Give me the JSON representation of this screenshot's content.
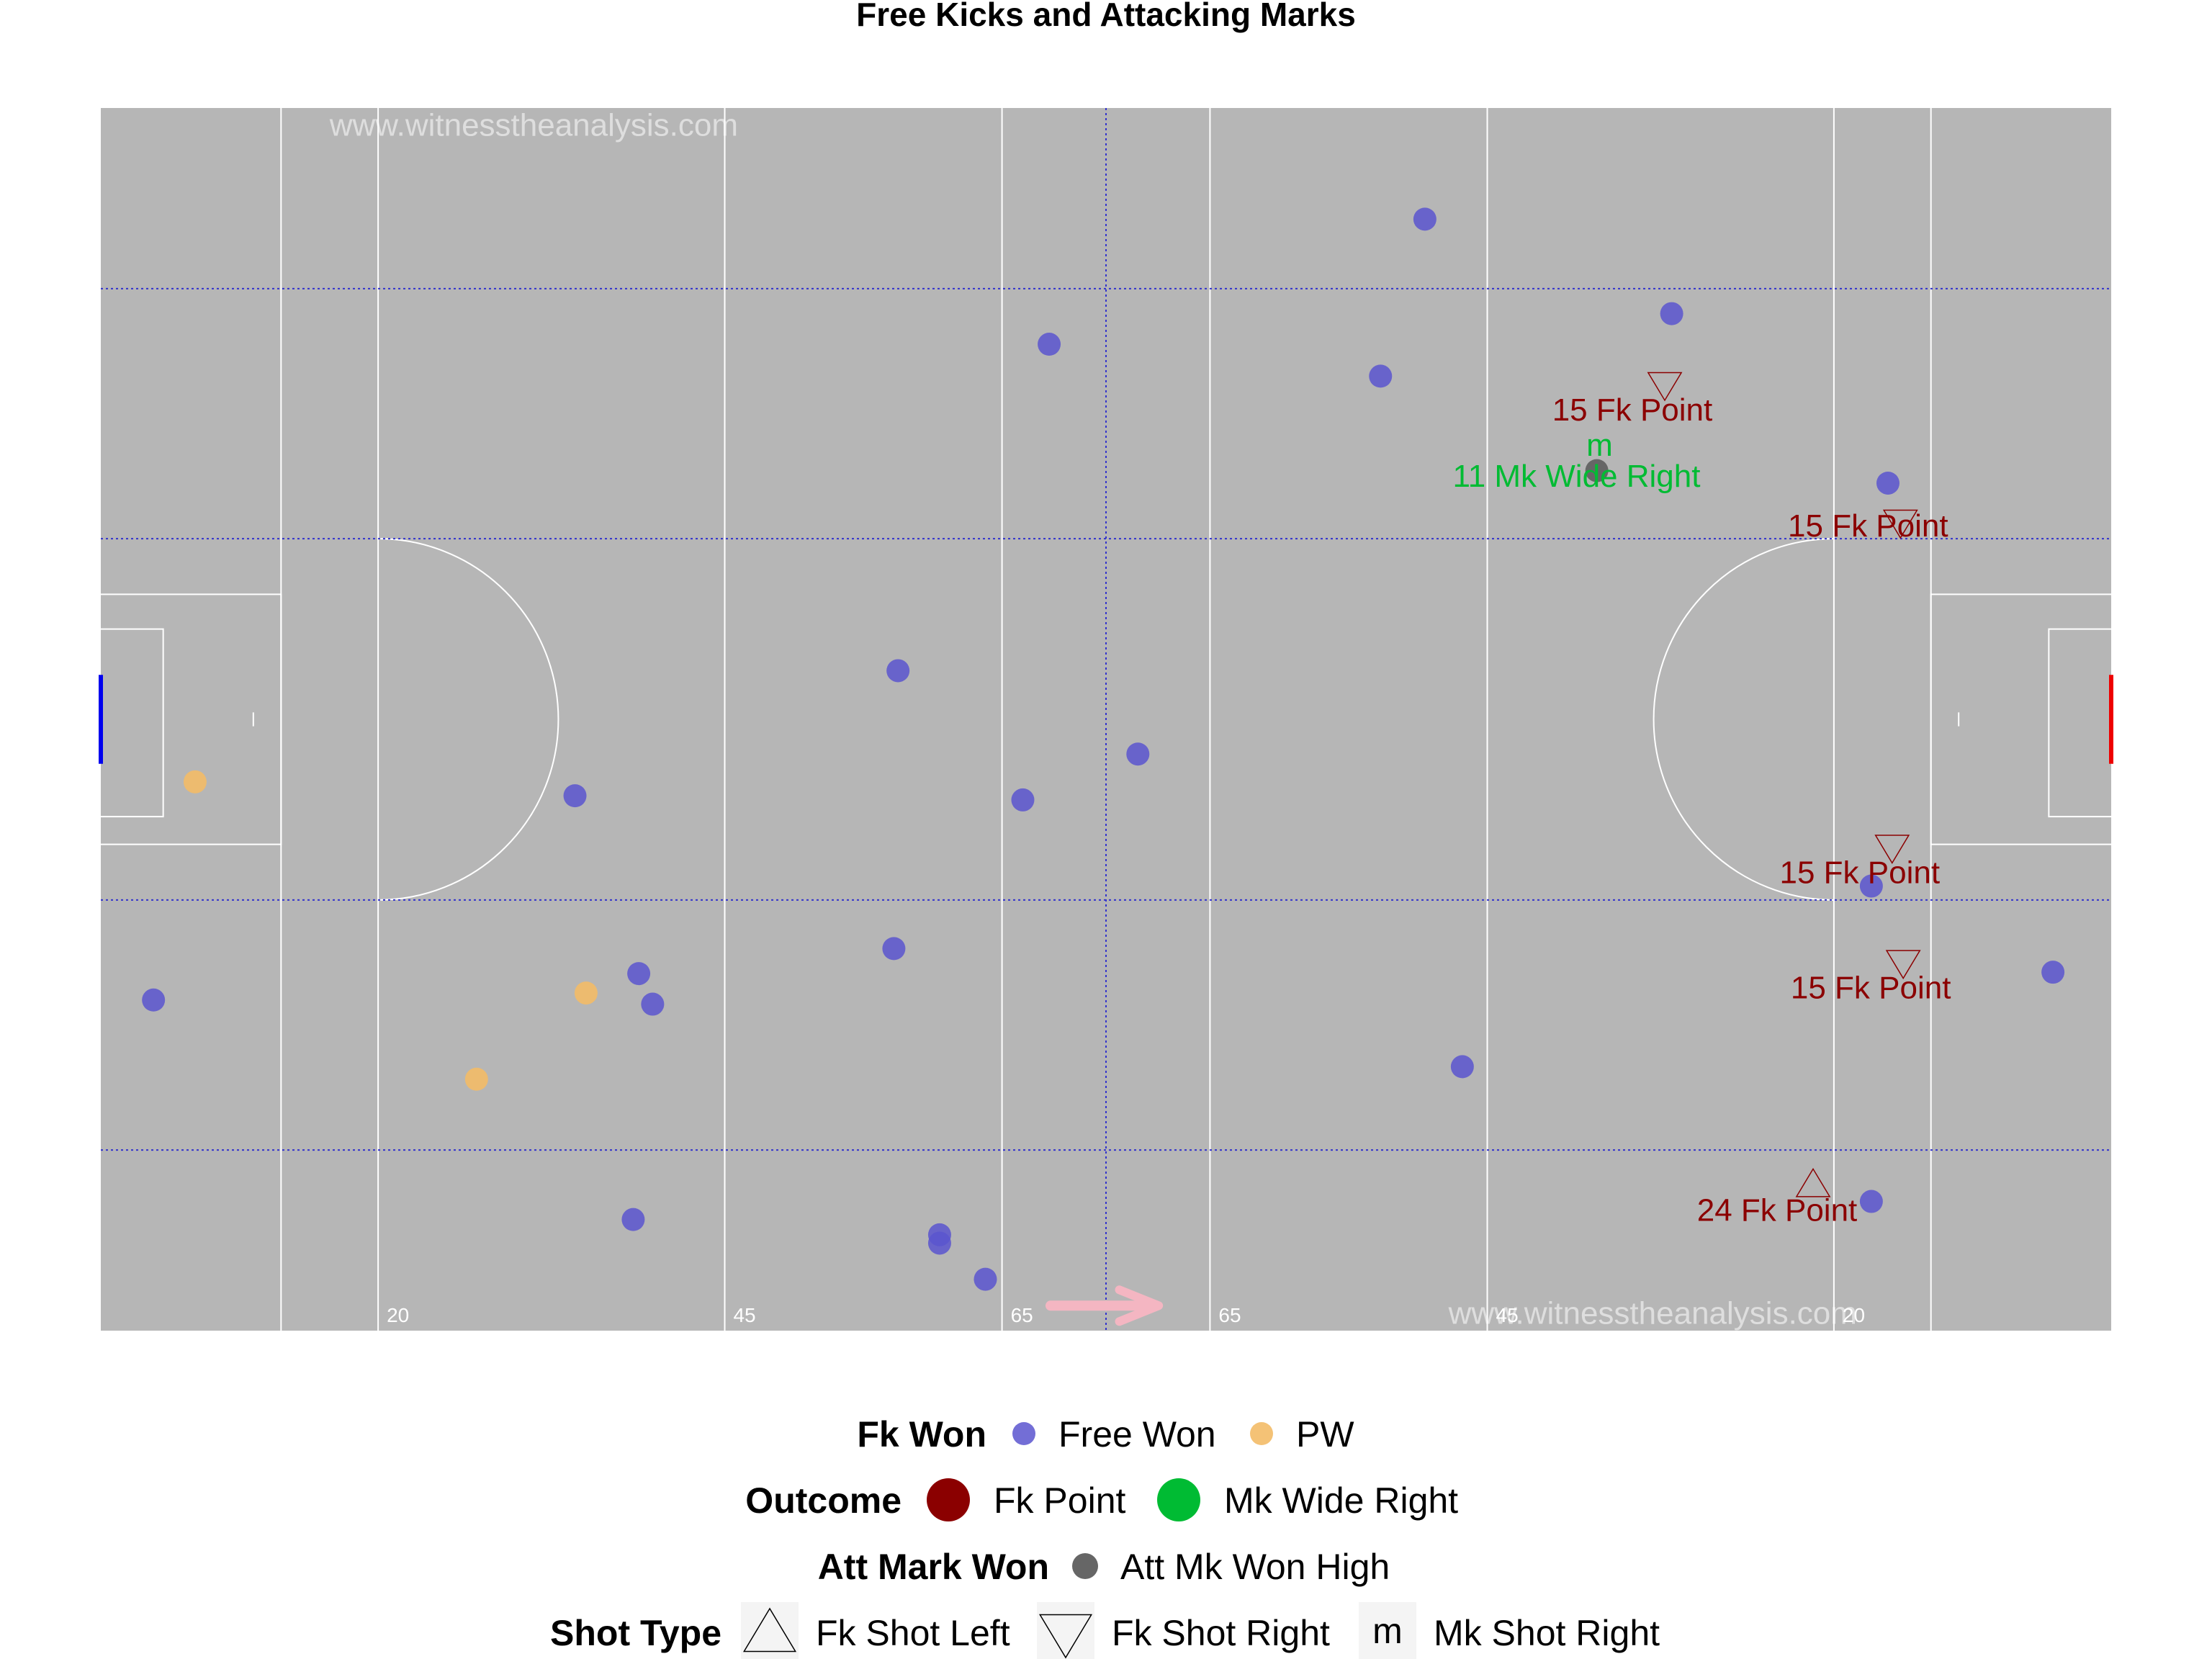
{
  "chart_data": {
    "type": "scatter",
    "title": "Free Kicks and Attacking Marks",
    "watermark": "www.witnesstheanalysis.com",
    "xlim": [
      0,
      145
    ],
    "ylim": [
      0,
      88
    ],
    "distance_labels": [
      {
        "x": 20,
        "text": "20"
      },
      {
        "x": 45,
        "text": "45"
      },
      {
        "x": 65,
        "text": "65"
      },
      {
        "x": 80,
        "text": "65"
      },
      {
        "x": 100,
        "text": "45"
      },
      {
        "x": 125,
        "text": "20"
      }
    ],
    "colors": {
      "pitch": "#b6b6b6",
      "free_won": "#5a55cf",
      "pw": "#f3bb67",
      "fk_point": "#8b0000",
      "mk_wide_right": "#00bb33",
      "att_mark": "#666666",
      "left_goal": "#0000ee",
      "right_goal": "#ee0000",
      "arrow": "#f4b6c2",
      "dotted_lines": "#3333cc"
    },
    "fk_won": {
      "free_won": [
        [
          95.5,
          80
        ],
        [
          113.3,
          73.2
        ],
        [
          68.4,
          71
        ],
        [
          92.3,
          68.7
        ],
        [
          128.9,
          61
        ],
        [
          57.5,
          47.5
        ],
        [
          74.8,
          41.5
        ],
        [
          34.2,
          38.5
        ],
        [
          66.5,
          38.2
        ],
        [
          127.7,
          32
        ],
        [
          57.2,
          27.5
        ],
        [
          38.8,
          25.7
        ],
        [
          39.8,
          23.5
        ],
        [
          3.8,
          23.8
        ],
        [
          140.8,
          25.8
        ],
        [
          98.2,
          19
        ],
        [
          127.7,
          9.3
        ],
        [
          38.4,
          8
        ],
        [
          60.5,
          6.9
        ],
        [
          60.5,
          6.3
        ],
        [
          63.8,
          3.7
        ]
      ],
      "pw": [
        [
          6.8,
          39.5
        ],
        [
          35,
          24.3
        ],
        [
          27.1,
          18.1
        ]
      ]
    },
    "att_mark_won": [
      {
        "name": "Att Mk Won High",
        "x": 107.9,
        "y": 61.9
      }
    ],
    "shots": [
      {
        "x": 112.8,
        "y": 68.1,
        "shot_type": "Fk Shot Right",
        "outcome": "Fk Point",
        "label": "15 Fk Point"
      },
      {
        "x": 129.8,
        "y": 58.2,
        "shot_type": "Fk Shot Right",
        "outcome": "Fk Point",
        "label": "15 Fk Point"
      },
      {
        "x": 129.2,
        "y": 34.8,
        "shot_type": "Fk Shot Right",
        "outcome": "Fk Point",
        "label": "15 Fk Point"
      },
      {
        "x": 130,
        "y": 26.5,
        "shot_type": "Fk Shot Right",
        "outcome": "Fk Point",
        "label": "15 Fk Point"
      },
      {
        "x": 123.5,
        "y": 10.5,
        "shot_type": "Fk Shot Left",
        "outcome": "Fk Point",
        "label": "24 Fk Point"
      },
      {
        "x": 108.1,
        "y": 63.6,
        "shot_type": "Mk Shot Right",
        "outcome": "Mk Wide Right",
        "label": "11 Mk Wide Right"
      }
    ],
    "legend": {
      "position": "bottom",
      "groups": [
        {
          "title": "Fk Won",
          "items": [
            "Free Won",
            "PW"
          ]
        },
        {
          "title": "Outcome",
          "items": [
            "Fk Point",
            "Mk Wide Right"
          ]
        },
        {
          "title": "Att Mark Won",
          "items": [
            "Att Mk Won High"
          ]
        },
        {
          "title": "Shot Type",
          "items": [
            "Fk Shot Left",
            "Fk Shot Right",
            "Mk Shot Right"
          ],
          "mark_glyph": "m"
        }
      ]
    }
  }
}
